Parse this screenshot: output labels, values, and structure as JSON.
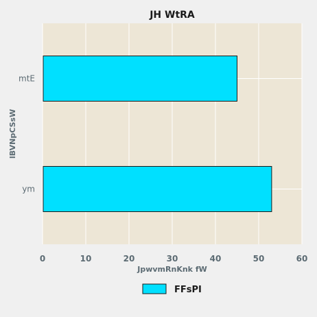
{
  "chart_data": {
    "type": "bar",
    "orientation": "horizontal",
    "title": "JH WtRA",
    "xlabel": "JpwvmRnKnk  fW",
    "ylabel": "lBVNpCSsW",
    "categories": [
      "ym",
      "mtE"
    ],
    "series": [
      {
        "name": "FFsPI",
        "values": [
          53,
          45
        ]
      }
    ],
    "xlim": [
      0,
      60
    ],
    "xticks": [
      "0",
      "10",
      "20",
      "30",
      "40",
      "50",
      "60"
    ],
    "grid": true,
    "legend_position": "bottom-center",
    "colors": {
      "background": "#f0f0f0",
      "plot_background": "#ede6d6",
      "grid": "#ffffff",
      "bar": "#00e0ff",
      "bar_edge": "#1a1a1a",
      "tick_text": "#5c6b73",
      "title_text": "#1a1a1a"
    }
  }
}
